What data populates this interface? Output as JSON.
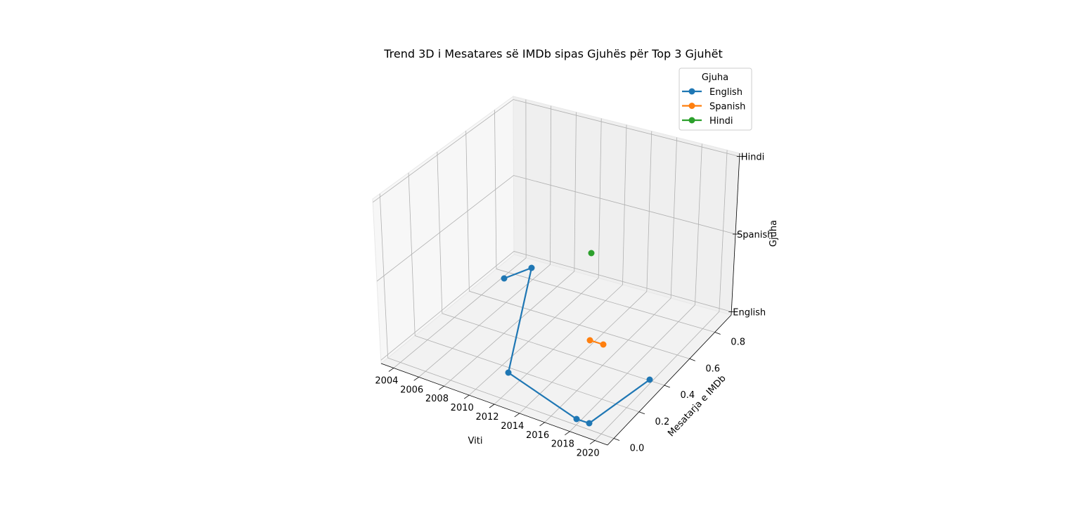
{
  "chart_data": {
    "type": "line",
    "title": "Trend 3D i Mesatares së IMDb sipas Gjuhës për Top 3 Gjuhët",
    "xlabel": "Viti",
    "ylabel": "Mesatarja e IMDb",
    "zlabel": "Gjuha",
    "x_ticks": [
      "2004",
      "2006",
      "2008",
      "2010",
      "2012",
      "2014",
      "2016",
      "2018",
      "2020"
    ],
    "y_ticks": [
      "0.0",
      "0.2",
      "0.4",
      "0.6",
      "0.8"
    ],
    "z_ticks": [
      "English",
      "Spanish",
      "Hindi"
    ],
    "grid": true,
    "legend": {
      "title": "Gjuha",
      "position": "top-right"
    },
    "series": [
      {
        "name": "English",
        "color": "#1f77b4",
        "points": [
          {
            "x": 2009.0,
            "y": 0.8,
            "z": "English"
          },
          {
            "x": 2010.6,
            "y": 0.88,
            "z": "English"
          },
          {
            "x": 2011.5,
            "y": 0.1,
            "z": "English"
          },
          {
            "x": 2018.8,
            "y": 0.18,
            "z": "English"
          },
          {
            "x": 2019.6,
            "y": 0.15,
            "z": "English"
          },
          {
            "x": 2020.0,
            "y": 0.74,
            "z": "English"
          }
        ]
      },
      {
        "name": "Spanish",
        "color": "#ff7f0e",
        "points": [
          {
            "x": 2016.5,
            "y": 0.67,
            "z": "Spanish"
          },
          {
            "x": 2017.5,
            "y": 0.67,
            "z": "Spanish"
          }
        ]
      },
      {
        "name": "Hindi",
        "color": "#2ca02c",
        "points": [
          {
            "x": 2017.0,
            "y": 0.5,
            "z": "Hindi"
          }
        ]
      }
    ]
  }
}
